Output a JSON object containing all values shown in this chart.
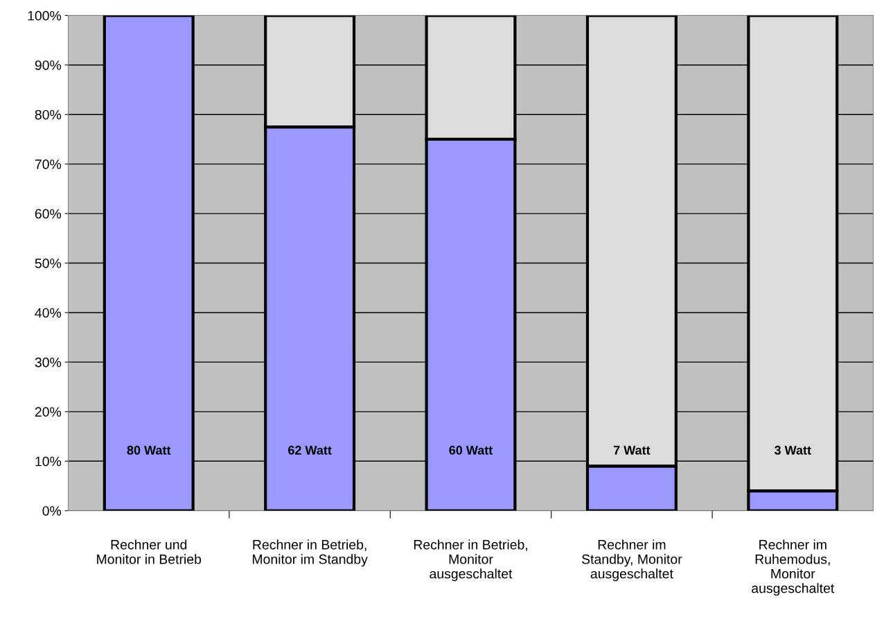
{
  "chart_data": {
    "type": "bar",
    "stacked": true,
    "categories": [
      "Rechner und\nMonitor in Betrieb",
      "Rechner in Betrieb,\nMonitor im Standby",
      "Rechner in Betrieb,\nMonitor\nausgeschaltet",
      "Rechner im\nStandby, Monitor\nausgeschaltet",
      "Rechner im\nRuhemodus,\nMonitor\nausgeschaltet"
    ],
    "series": [
      {
        "color": "#9999ff",
        "values": [
          100,
          77.5,
          75,
          9,
          4
        ]
      },
      {
        "color": "#dcdcdc",
        "values": [
          null,
          22.5,
          25,
          91,
          96
        ]
      }
    ],
    "annotations": [
      "80 Watt",
      "62 Watt",
      "60 Watt",
      "7 Watt",
      "3 Watt"
    ],
    "ylim": [
      0,
      100
    ],
    "yticks": [
      {
        "value": 0,
        "label": "0%"
      },
      {
        "value": 10,
        "label": "10%"
      },
      {
        "value": 20,
        "label": "20%"
      },
      {
        "value": 30,
        "label": "30%"
      },
      {
        "value": 40,
        "label": "40%"
      },
      {
        "value": 50,
        "label": "50%"
      },
      {
        "value": 60,
        "label": "60%"
      },
      {
        "value": 70,
        "label": "70%"
      },
      {
        "value": 80,
        "label": "80%"
      },
      {
        "value": 90,
        "label": "90%"
      },
      {
        "value": 100,
        "label": "100%"
      }
    ],
    "grid": "y"
  }
}
